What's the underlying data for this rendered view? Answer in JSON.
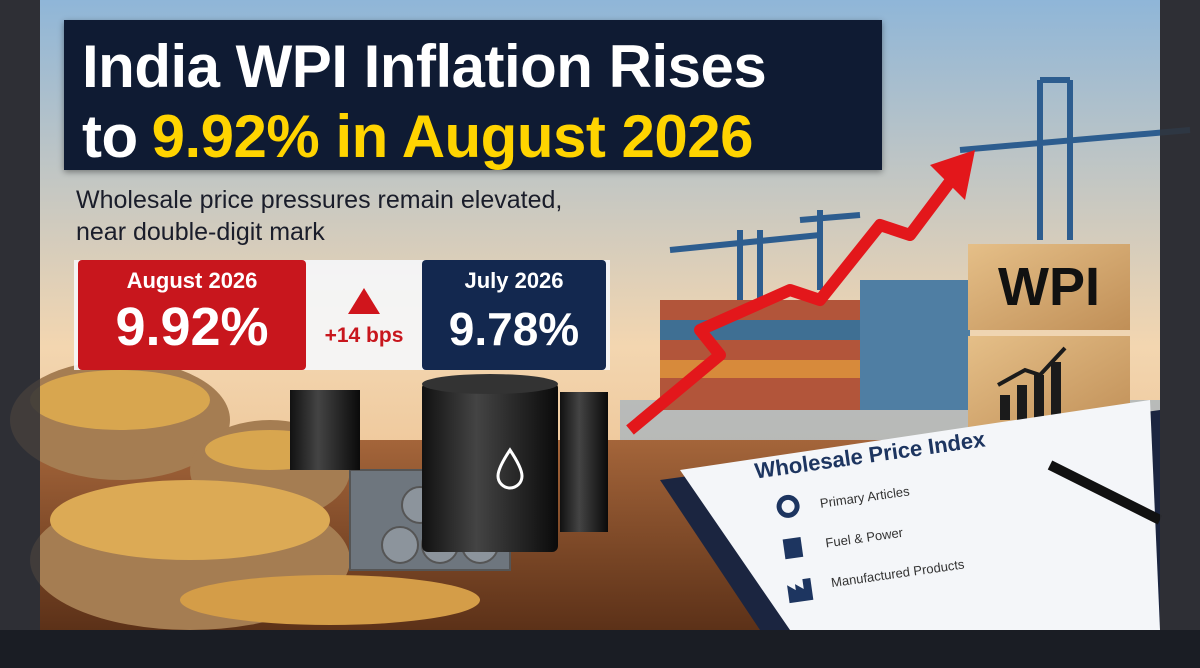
{
  "headline": {
    "line1": "India WPI Inflation Rises",
    "line2_prefix": "to",
    "line2_highlight": "9.92% in August 2026"
  },
  "subtitle": {
    "line1": "Wholesale price pressures remain elevated,",
    "line2": "near double-digit mark"
  },
  "stats": {
    "current": {
      "label": "August 2026",
      "value": "9.92%"
    },
    "change": "+14 bps",
    "previous": {
      "label": "July 2026",
      "value": "9.78%"
    }
  },
  "block": {
    "label": "WPI"
  },
  "document": {
    "title": "Wholesale Price Index",
    "items": [
      "Primary Articles",
      "Fuel & Power",
      "Manufactured Products"
    ]
  }
}
